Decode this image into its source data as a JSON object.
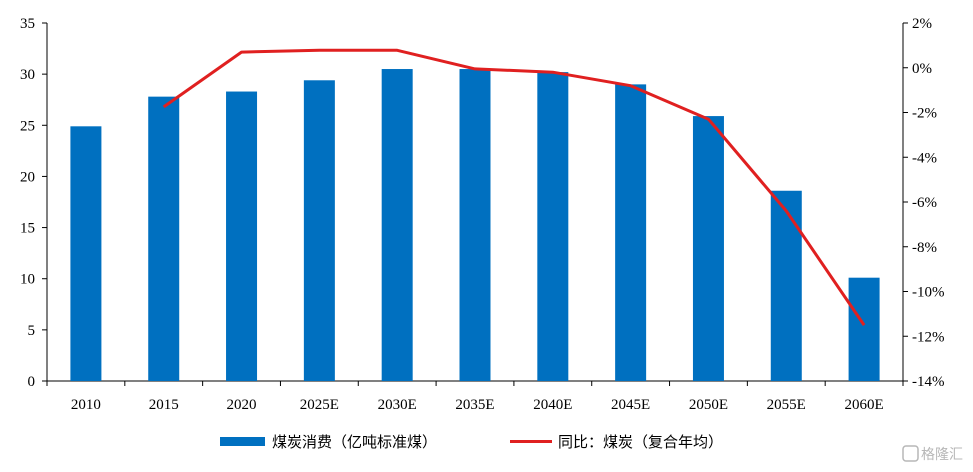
{
  "chart_data": {
    "type": "bar",
    "categories": [
      "2010",
      "2015",
      "2020",
      "2025E",
      "2030E",
      "2035E",
      "2040E",
      "2045E",
      "2050E",
      "2055E",
      "2060E"
    ],
    "series": [
      {
        "name": "煤炭消费（亿吨标准煤）",
        "type": "bar",
        "axis": "left",
        "color": "#0070C0",
        "values": [
          24.9,
          27.8,
          28.3,
          29.4,
          30.5,
          30.5,
          30.2,
          29.0,
          25.9,
          18.6,
          10.1
        ]
      },
      {
        "name": "同比：煤炭（复合年均）",
        "type": "line",
        "axis": "right",
        "color": "#E02020",
        "x": [
          "2015",
          "2020",
          "2025E",
          "2030E",
          "2035E",
          "2040E",
          "2045E",
          "2050E",
          "2055E",
          "2060E"
        ],
        "values": [
          -1.75,
          0.7,
          0.78,
          0.78,
          -0.05,
          -0.2,
          -0.8,
          -2.3,
          -6.4,
          -11.5
        ]
      }
    ],
    "y_left": {
      "ylim": [
        0,
        35
      ],
      "ticks": [
        0,
        5,
        10,
        15,
        20,
        25,
        30,
        35
      ],
      "tick_labels": [
        "0",
        "5",
        "10",
        "15",
        "20",
        "25",
        "30",
        "35"
      ]
    },
    "y_right": {
      "ylim": [
        -14,
        2
      ],
      "ticks": [
        2,
        0,
        -2,
        -4,
        -6,
        -8,
        -10,
        -12,
        -14
      ],
      "tick_labels": [
        "2%",
        "0%",
        "-2%",
        "-4%",
        "-6%",
        "-8%",
        "-10%",
        "-12%",
        "-14%"
      ]
    },
    "grid": false,
    "legend": {
      "position": "bottom",
      "items": [
        "煤炭消费（亿吨标准煤）",
        "同比：煤炭（复合年均）"
      ]
    }
  },
  "watermark": {
    "text": "格隆汇",
    "icon": "logo-icon"
  }
}
